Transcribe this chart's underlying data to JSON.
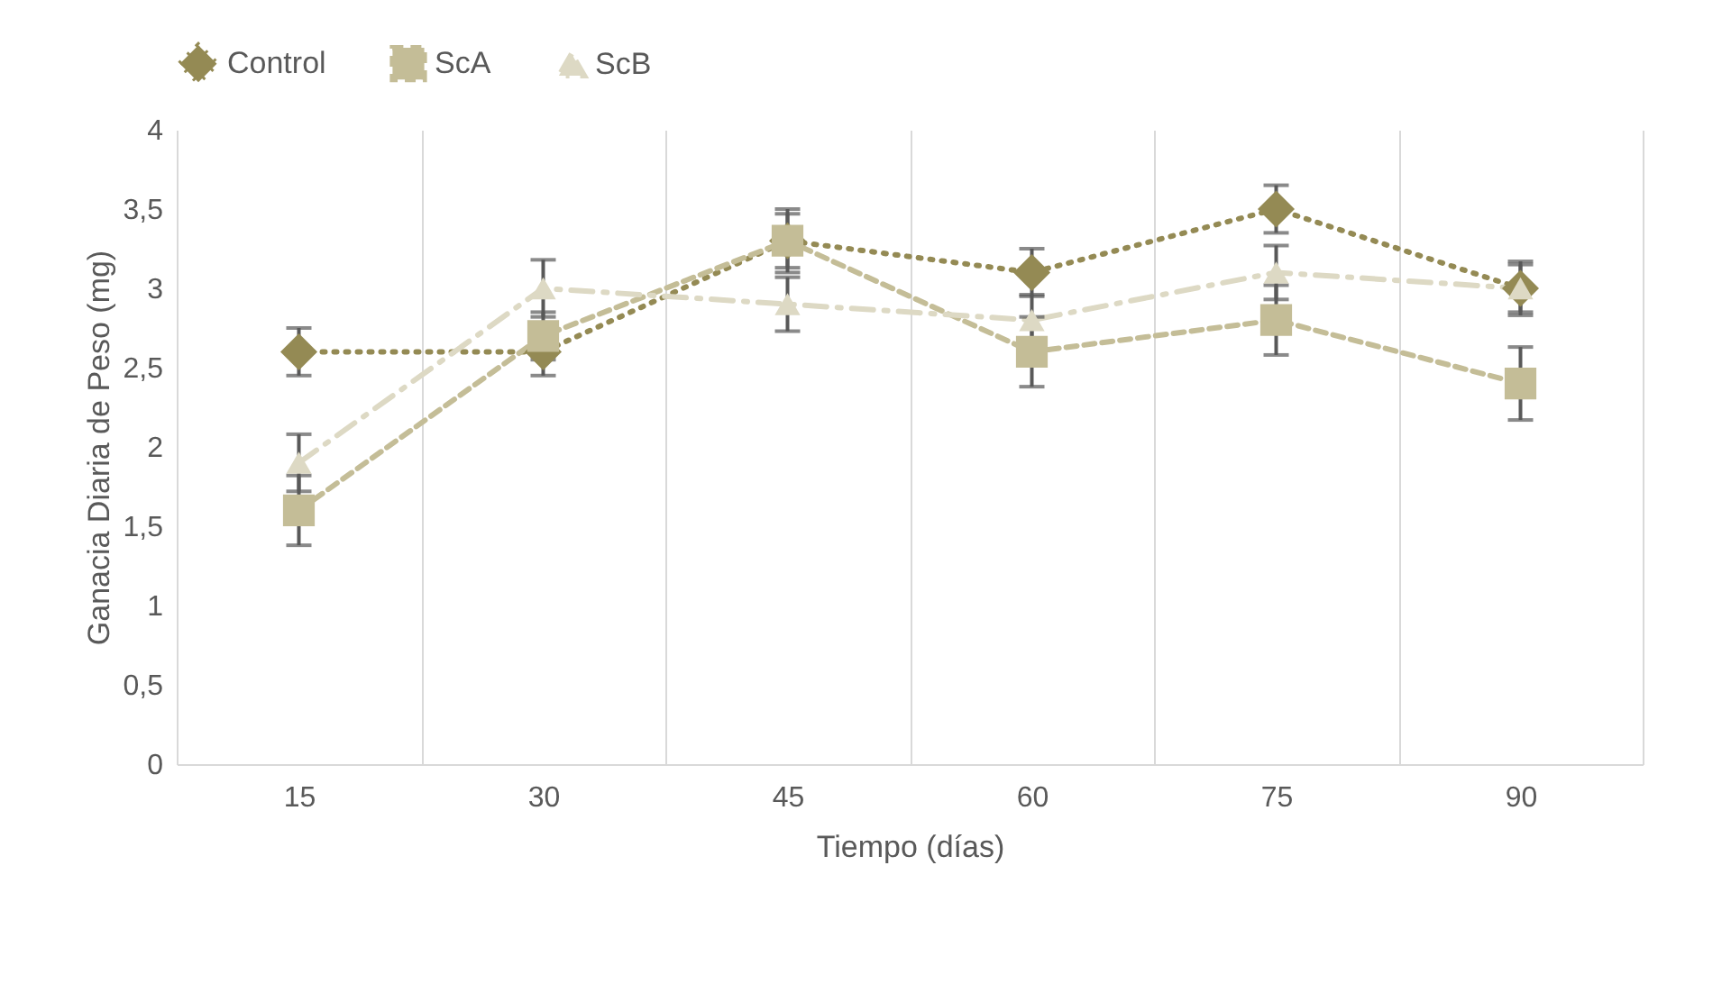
{
  "chart_data": {
    "type": "line",
    "xlabel": "Tiempo (días)",
    "ylabel": "Ganacia Diaria de Peso (mg)",
    "categories": [
      "15",
      "30",
      "45",
      "60",
      "75",
      "90"
    ],
    "ylim": [
      0,
      4
    ],
    "yticks": [
      {
        "value": 0,
        "label": "0"
      },
      {
        "value": 0.5,
        "label": "0,5"
      },
      {
        "value": 1,
        "label": "1"
      },
      {
        "value": 1.5,
        "label": "1,5"
      },
      {
        "value": 2,
        "label": "2"
      },
      {
        "value": 2.5,
        "label": "2,5"
      },
      {
        "value": 3,
        "label": "3"
      },
      {
        "value": 3.5,
        "label": "3,5"
      },
      {
        "value": 4,
        "label": "4"
      }
    ],
    "grid": "x",
    "legend": "top",
    "series": [
      {
        "name": "Control",
        "color": "#948a54",
        "marker": "diamond",
        "line_style": "dotted",
        "values": [
          2.6,
          2.6,
          3.3,
          3.1,
          3.5,
          3.0
        ],
        "errors": [
          0.15,
          0.15,
          0.17,
          0.15,
          0.15,
          0.17
        ]
      },
      {
        "name": "ScA",
        "color": "#c4bd97",
        "marker": "square",
        "line_style": "dashed",
        "values": [
          1.6,
          2.7,
          3.3,
          2.6,
          2.8,
          2.4
        ],
        "errors": [
          0.22,
          0.15,
          0.2,
          0.22,
          0.22,
          0.23
        ]
      },
      {
        "name": "ScB",
        "color": "#ddd9c4",
        "marker": "triangle",
        "line_style": "dashdot",
        "values": [
          1.9,
          3.0,
          2.9,
          2.8,
          3.1,
          3.0
        ],
        "errors": [
          0.18,
          0.18,
          0.17,
          0.16,
          0.17,
          0.15
        ]
      }
    ]
  }
}
